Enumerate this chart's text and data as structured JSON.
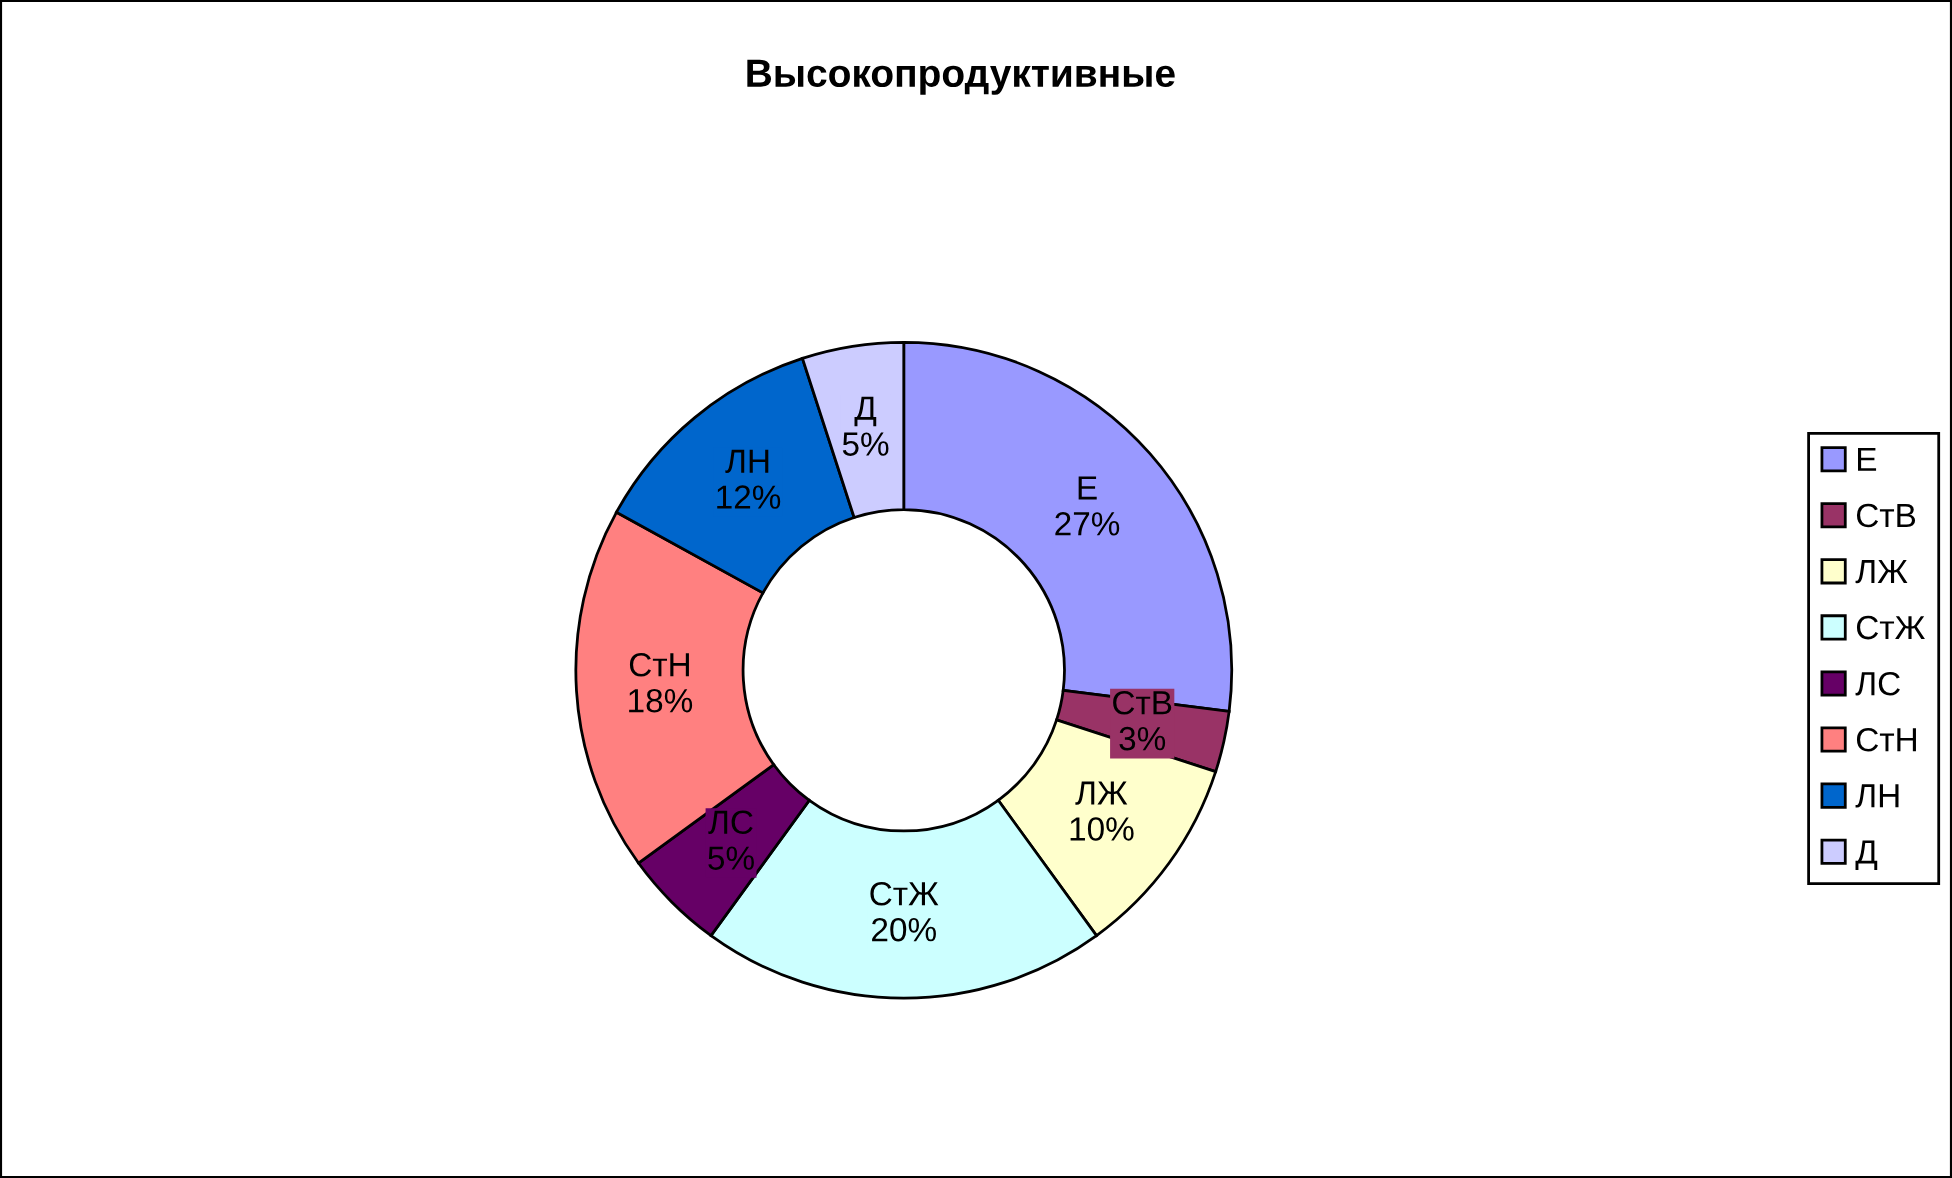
{
  "chart_data": {
    "type": "donut",
    "title": "Высокопродуктивные",
    "categories": [
      "Е",
      "СтВ",
      "ЛЖ",
      "СтЖ",
      "ЛС",
      "СтН",
      "ЛН",
      "Д"
    ],
    "values": [
      27,
      3,
      10,
      20,
      5,
      18,
      12,
      5
    ],
    "value_labels": [
      "27%",
      "3%",
      "10%",
      "20%",
      "5%",
      "18%",
      "12%",
      "5%"
    ],
    "colors": [
      "#9999ff",
      "#993366",
      "#ffffcc",
      "#ccffff",
      "#660066",
      "#ff8080",
      "#0066cc",
      "#ccccff"
    ],
    "legend": "right"
  }
}
